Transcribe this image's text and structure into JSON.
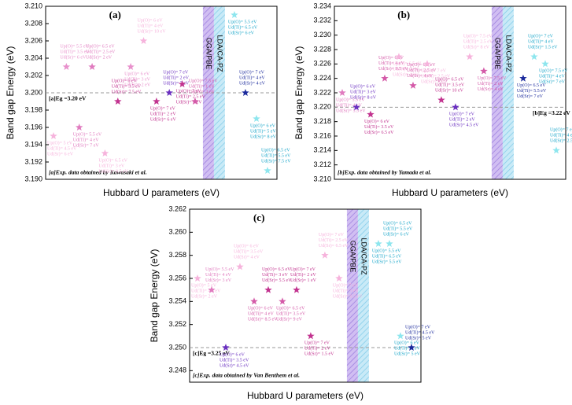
{
  "chart_data": [
    {
      "type": "scatter",
      "label": "(a)",
      "xlabel": "Hubbard U parameters (eV)",
      "ylabel": "Band gap Energy (eV)",
      "ylim": [
        3.19,
        3.21
      ],
      "yticks": [
        {
          "value": 3.19,
          "label": "3.190"
        },
        {
          "value": 3.192,
          "label": "3.192"
        },
        {
          "value": 3.194,
          "label": "3.194"
        },
        {
          "value": 3.196,
          "label": "3.196"
        },
        {
          "value": 3.198,
          "label": "3.198"
        },
        {
          "value": 3.2,
          "label": "3.200"
        },
        {
          "value": 3.202,
          "label": "3.202"
        },
        {
          "value": 3.204,
          "label": "3.204"
        },
        {
          "value": 3.206,
          "label": "3.206"
        },
        {
          "value": 3.208,
          "label": "3.208"
        },
        {
          "value": 3.21,
          "label": "3.210"
        }
      ],
      "reference": {
        "value": 3.2,
        "label": "[a]Eg =3.20 eV"
      },
      "note": "[a]Exp. data obtained by Kawasaki et al.",
      "series": [
        {
          "name": "GGA/PBE",
          "values": [
            3.195,
            3.203,
            3.196,
            3.203,
            3.193,
            3.199,
            3.203,
            3.206,
            3.199,
            3.2,
            3.201,
            3.199
          ],
          "colors": [
            "#f6b3dc",
            "#e891cc",
            "#e07bbf",
            "#e07bbf",
            "#f6b3dc",
            "#c2338f",
            "#e891cc",
            "#f6b3dc",
            "#c2338f",
            "#6a2fc0",
            "#c2338f",
            "#d45aa8"
          ],
          "labels": [
            [
              "Up(O)= 5 eV",
              "Ud(Ti)= 4.5 eV",
              "Ud(Sr)= 6 eV"
            ],
            [
              "Up(O)= 5.5 eV",
              "Ud(Ti)= 3.5 eV",
              "Ud(Sr)= 6 eV"
            ],
            [
              "Up(O)= 5.5 eV",
              "Ud(Ti)= 4 eV",
              "Ud(Sr)= 7 eV"
            ],
            [
              "Up(O)= 6.5 eV",
              "Ud(Ti)= 2.5 eV",
              "Ud(Sr)= 2 eV"
            ],
            [
              "Up(O)= 6.5 eV",
              "Ud(Ti)= 3 eV",
              "Ud(Sr)= 8.5 eV"
            ],
            [
              "Up(O)= 6 eV",
              "Ud(Ti)= 3.5 eV",
              "Ud(Sr)= 7.5 eV"
            ],
            [
              "Up(O)= 6 eV",
              "Ud(Ti)= 3 eV",
              "Ud(Sr)= 2 eV"
            ],
            [
              "Up(O)= 6 eV",
              "Ud(Ti)= 4 eV",
              "Ud(Sr)= 10 eV"
            ],
            [
              "Up(O)= 7 eV",
              "Ud(Ti)= 2 eV",
              "Ud(Sr)= 6 eV"
            ],
            [
              "Up(O)= 7 eV",
              "Ud(Ti)= 2 eV",
              "Ud(Sr)= 7 eV"
            ],
            [
              "Up(O)= 7 eV",
              "Ud(Ti)= 2.5 eV",
              "Ud(Sr)= 9 eV"
            ],
            [
              "Up(O)= 7.5 eV",
              "Ud(Ti)= 1 eV",
              "Ud(Sr)= 3 eV"
            ]
          ]
        },
        {
          "name": "LDA/CA-PZ",
          "values": [
            3.209,
            3.2,
            3.197,
            3.191
          ],
          "colors": [
            "#8ee6ee",
            "#1b2a9c",
            "#8ee6ee",
            "#8ee6ee"
          ],
          "labels": [
            [
              "Up(O)= 5.5 eV",
              "Ud(Ti)= 6.5 eV",
              "Ud(Sr)= 6 eV"
            ],
            [
              "Up(O)= 7 eV",
              "Ud(Ti)= 4 eV",
              "Ud(Sr)= 4 eV"
            ],
            [
              "Up(O)= 6 eV",
              "Ud(Ti)= 5 eV",
              "Ud(Sr)= 8 eV"
            ],
            [
              "Up(O)= 6.5 eV",
              "Ud(Ti)= 5.5 eV",
              "Ud(Sr)= 7.5 eV"
            ]
          ]
        }
      ]
    },
    {
      "type": "scatter",
      "label": "(b)",
      "xlabel": "Hubbard U parameters (eV)",
      "ylabel": "Band gap Energy (eV)",
      "ylim": [
        3.21,
        3.234
      ],
      "yticks": [
        {
          "value": 3.21,
          "label": "3.210"
        },
        {
          "value": 3.212,
          "label": "3.212"
        },
        {
          "value": 3.214,
          "label": "3.214"
        },
        {
          "value": 3.216,
          "label": "3.216"
        },
        {
          "value": 3.218,
          "label": "3.218"
        },
        {
          "value": 3.22,
          "label": "3.220"
        },
        {
          "value": 3.222,
          "label": "3.222"
        },
        {
          "value": 3.224,
          "label": "3.224"
        },
        {
          "value": 3.226,
          "label": "3.226"
        },
        {
          "value": 3.228,
          "label": "3.228"
        },
        {
          "value": 3.23,
          "label": "3.230"
        },
        {
          "value": 3.232,
          "label": "3.232"
        },
        {
          "value": 3.234,
          "label": "3.234"
        }
      ],
      "reference": {
        "value": 3.22,
        "label": "[b]Eg =3.22 eV"
      },
      "note": "[b]Exp. data obtained by Yamada et al.",
      "series": [
        {
          "name": "GGA/PBE",
          "values": [
            3.222,
            3.22,
            3.219,
            3.224,
            3.227,
            3.223,
            3.226,
            3.221,
            3.22,
            3.227,
            3.225
          ],
          "colors": [
            "#e07bbf",
            "#6a2fc0",
            "#c2338f",
            "#d45aa8",
            "#f6b3dc",
            "#d45aa8",
            "#f6b3dc",
            "#c2338f",
            "#6a2fc0",
            "#f6b3dc",
            "#d45aa8"
          ],
          "labels": [
            [
              "Up(O)= 5.5 eV",
              "Ud(Ti)= 4 eV",
              "Ud(Sr)= 5.5 eV"
            ],
            [
              "Up(O)= 6 eV",
              "Ud(Ti)= 3 eV",
              "Ud(Sr)= 8 eV"
            ],
            [
              "Up(O)= 6 eV",
              "Ud(Ti)= 3.5 eV",
              "Ud(Sr)= 6.5 eV"
            ],
            [
              "Up(O)= 6 eV",
              "Ud(Ti)= 4 eV",
              "Ud(Sr)= 9.5 eV"
            ],
            [
              "Up(O)= 6.5 eV",
              "Ud(Ti)= 3 eV",
              "Ud(Sr)= 4 eV"
            ],
            [
              "Up(O)= 6.5 eV",
              "Ud(Ti)= 2.5 eV",
              "Ud(Sr)= 4 eV"
            ],
            [
              "Up(O)= 7 eV",
              "Ud(Ti)= 2.5 eV",
              "Ud(Sr)= 6 eV"
            ],
            [
              "Up(O)= 6.5 eV",
              "Ud(Ti)= 3.5 eV",
              "Ud(Sr)= 10 eV"
            ],
            [
              "Up(O)= 7 eV",
              "Ud(Ti)= 2 eV",
              "Ud(Sr)= 4.5 eV"
            ],
            [
              "Up(O)= 7.5 eV",
              "Ud(Ti)= 2.5 eV",
              "Ud(Sr)= 8 eV"
            ],
            [
              "Up(O)= 7.5 eV",
              "Ud(Ti)= 2 eV",
              "Ud(Sr)= 4 eV"
            ]
          ]
        },
        {
          "name": "LDA/CA-PZ",
          "values": [
            3.224,
            3.227,
            3.226,
            3.214
          ],
          "colors": [
            "#1b2a9c",
            "#8ee6ee",
            "#8ee6ee",
            "#8ee6ee"
          ],
          "labels": [
            [
              "Up(O)= 6.5 eV",
              "Ud(Ti)= 5.5 eV",
              "Ud(Sr)= 7 eV"
            ],
            [
              "Up(O)= 7 eV",
              "Ud(Ti)= 4 eV",
              "Ud(Sr)= 1.5 eV"
            ],
            [
              "Up(O)= 7.5 eV",
              "Ud(Ti)= 4 eV",
              "Ud(Sr)= 7 eV"
            ],
            [
              "Up(O)= 7 eV",
              "Ud(Ti)= 4 eV",
              "Ud(Sr)= 2.5 eV"
            ]
          ]
        }
      ]
    },
    {
      "type": "scatter",
      "label": "(c)",
      "xlabel": "Hubbard U parameters (eV)",
      "ylabel": "Band gap Energy (eV)",
      "ylim": [
        3.247,
        3.262
      ],
      "yticks": [
        {
          "value": 3.248,
          "label": "3.248"
        },
        {
          "value": 3.25,
          "label": "3.250"
        },
        {
          "value": 3.252,
          "label": "3.252"
        },
        {
          "value": 3.254,
          "label": "3.254"
        },
        {
          "value": 3.256,
          "label": "3.256"
        },
        {
          "value": 3.258,
          "label": "3.258"
        },
        {
          "value": 3.26,
          "label": "3.260"
        },
        {
          "value": 3.262,
          "label": "3.262"
        }
      ],
      "reference": {
        "value": 3.25,
        "label": "[c]Eg =3.25 eV"
      },
      "note": "[c]Exp. data obtained by Van Benthem et al.",
      "series": [
        {
          "name": "GGA/PBE",
          "values": [
            3.256,
            3.255,
            3.25,
            3.257,
            3.254,
            3.255,
            3.254,
            3.255,
            3.251,
            3.258,
            3.256
          ],
          "colors": [
            "#f6b3dc",
            "#e07bbf",
            "#6a2fc0",
            "#f6b3dc",
            "#d45aa8",
            "#c2338f",
            "#d45aa8",
            "#c2338f",
            "#c2338f",
            "#f6b3dc",
            "#f6b3dc"
          ],
          "labels": [
            [
              "Up(O)= 5 eV",
              "Ud(Ti)= 4.5 eV",
              "Ud(Sr)= 2 eV"
            ],
            [
              "Up(O)= 5.5 eV",
              "Ud(Ti)= 4 eV",
              "Ud(Sr)= 3 eV"
            ],
            [
              "Up(O)= 6 eV",
              "Ud(Ti)= 3.5 eV",
              "Ud(Sr)= 4.5 eV"
            ],
            [
              "Up(O)= 6 eV",
              "Ud(Ti)= 3.5 eV",
              "Ud(Sr)= 4 eV"
            ],
            [
              "Up(O)= 6 eV",
              "Ud(Ti)= 4 eV",
              "Ud(Sr)= 8.5 eV"
            ],
            [
              "Up(O)= 6.5 eV",
              "Ud(Ti)= 3 eV",
              "Ud(Sr)= 5.5 eV"
            ],
            [
              "Up(O)= 6.5 eV",
              "Ud(Ti)= 3.5 eV",
              "Ud(Sr)= 9 eV"
            ],
            [
              "Up(O)= 7 eV",
              "Ud(Ti)= 2 eV",
              "Ud(Sr)= 1 eV"
            ],
            [
              "Up(O)= 7 eV",
              "Ud(Ti)= 2 eV",
              "Ud(Sr)= 1.5 eV"
            ],
            [
              "Up(O)= 7 eV",
              "Ud(Ti)= 2.5 eV",
              "Ud(Sr)= 6.5 eV"
            ],
            [
              "Up(O)= 7 eV",
              "Ud(Ti)= 3 eV",
              "Ud(Sr)= 9.5 eV"
            ]
          ]
        },
        {
          "name": "LDA/CA-PZ",
          "values": [
            3.259,
            3.259,
            3.251,
            3.25
          ],
          "colors": [
            "#8ee6ee",
            "#8ee6ee",
            "#8ee6ee",
            "#1b2a9c"
          ],
          "labels": [
            [
              "Up(O)= 5.5 eV",
              "Ud(Ti)= 6.5 eV",
              "Ud(Sr)= 5.5 eV"
            ],
            [
              "Up(O)= 6.5 eV",
              "Ud(Ti)= 5.5 eV",
              "Ud(Sr)= 6 eV"
            ],
            [
              "Up(O)= 6 eV",
              "Ud(Ti)= 6 eV",
              "Ud(Sr)= 5 eV"
            ],
            [
              "Up(O)= 7 eV",
              "Ud(Ti)= 4.5 eV",
              "Ud(Sr)= 5 eV"
            ]
          ]
        }
      ]
    }
  ]
}
